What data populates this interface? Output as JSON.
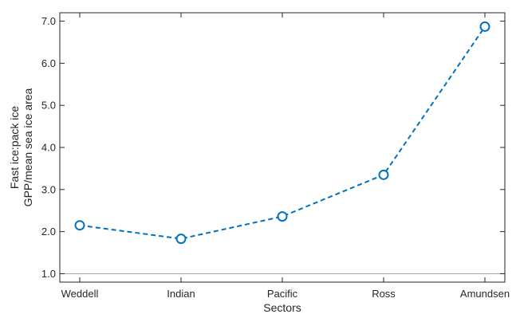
{
  "chart_data": {
    "type": "line",
    "title": "",
    "xlabel": "Sectors",
    "ylabel_lines": [
      "Fast ice:pack ice",
      "GPP/mean sea ice area"
    ],
    "categories": [
      "Weddell",
      "Indian",
      "Pacific",
      "Ross",
      "Amundsen"
    ],
    "values": [
      2.15,
      1.83,
      2.36,
      3.35,
      6.87
    ],
    "ylim": [
      0.8,
      7.2
    ],
    "yticks": [
      1.0,
      2.0,
      3.0,
      4.0,
      5.0,
      6.0,
      7.0
    ],
    "ytick_labels": [
      "1.0",
      "2.0",
      "3.0",
      "4.0",
      "5.0",
      "6.0",
      "7.0"
    ],
    "reference_line": 1.0,
    "line_style": "dashed",
    "marker": "open-circle",
    "grid": false,
    "legend": "none",
    "colors": {
      "series": "#0072BD",
      "axis": "#262626",
      "reference": "#a6a6a6"
    }
  }
}
